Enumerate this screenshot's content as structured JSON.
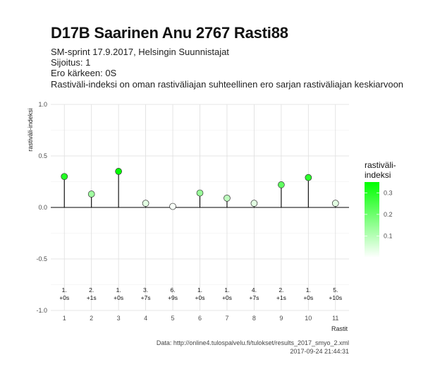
{
  "header": {
    "title": "D17B Saarinen Anu 2767 Rasti88",
    "subtitle_lines": [
      "SM-sprint 17.9.2017, Helsingin Suunnistajat",
      "Sijoitus: 1",
      "Ero kärkeen: 0S",
      "Rastiväli-indeksi on oman rastiväliajan suhteellinen ero sarjan rastiväliajan keskiarvoon"
    ]
  },
  "caption": {
    "source": "Data: http://online4.tulospalvelu.fi/tulokset/results_2017_smyo_2.xml",
    "timestamp": "2017-09-24 21:44:31"
  },
  "chart_data": {
    "type": "scatter",
    "style": "lollipop",
    "xlabel": "Rastit",
    "ylabel": "rastiväli-indeksi",
    "x": [
      1,
      2,
      3,
      4,
      5,
      6,
      7,
      8,
      9,
      10,
      11
    ],
    "values": [
      0.3,
      0.13,
      0.35,
      0.04,
      0.01,
      0.14,
      0.09,
      0.04,
      0.22,
      0.29,
      0.04
    ],
    "point_labels": [
      [
        "1.",
        "+0s"
      ],
      [
        "2.",
        "+1s"
      ],
      [
        "1.",
        "+0s"
      ],
      [
        "3.",
        "+7s"
      ],
      [
        "6.",
        "+9s"
      ],
      [
        "1.",
        "+0s"
      ],
      [
        "1.",
        "+0s"
      ],
      [
        "4.",
        "+7s"
      ],
      [
        "2.",
        "+1s"
      ],
      [
        "1.",
        "+0s"
      ],
      [
        "5.",
        "+10s"
      ]
    ],
    "xlim": [
      0.5,
      11.5
    ],
    "ylim": [
      -1.0,
      1.0
    ],
    "yticks": [
      -1.0,
      -0.5,
      0.0,
      0.5,
      1.0
    ],
    "ytick_labels": [
      "-1.0",
      "-0.5",
      "0.0",
      "0.5",
      "1.0"
    ],
    "xtick_labels": [
      "1",
      "2",
      "3",
      "4",
      "5",
      "6",
      "7",
      "8",
      "9",
      "10",
      "11"
    ],
    "grid": true,
    "legend": {
      "title_lines": [
        "rastiväli-",
        "indeksi"
      ],
      "ticks": [
        0.1,
        0.2,
        0.3
      ],
      "tick_labels": [
        "0.1",
        "0.2",
        "0.3"
      ],
      "range": [
        0.0,
        0.35
      ],
      "placement": "right",
      "color_low": "#ffffff",
      "color_high": "#00ff00"
    }
  }
}
